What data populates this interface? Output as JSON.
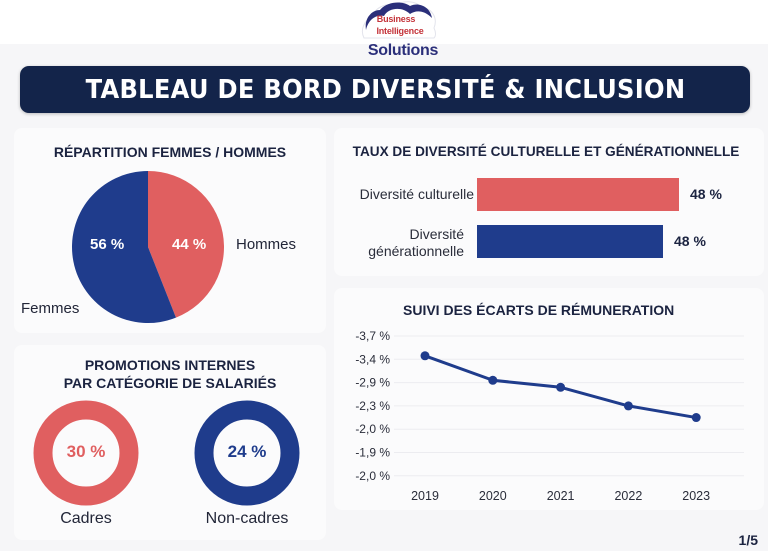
{
  "logo": {
    "line1": "Business",
    "line2": "Intelligence",
    "brand": "Solutions"
  },
  "header": {
    "title": "TABLEAU DE BORD DIVERSITÉ & INCLUSION"
  },
  "colors": {
    "navy": "#13244a",
    "red": "#e05f60",
    "blue": "#1f3c8c",
    "title_text": "#1b2340"
  },
  "page_indicator": "1/5",
  "chart_data": [
    {
      "type": "pie",
      "title": "RÉPARTITION FEMMES / HOMMES",
      "slices": [
        {
          "name": "Hommes",
          "value": 44,
          "label": "44 %",
          "color": "#e05f60"
        },
        {
          "name": "Femmes",
          "value": 56,
          "label": "56 %",
          "color": "#1f3c8c"
        }
      ]
    },
    {
      "type": "bar",
      "orientation": "horizontal",
      "title": "TAUX DE DIVERSITÉ CULTURELLE ET GÉNÉRATIONNELLE",
      "categories": [
        "Diversité culturelle",
        "Diversité générationnelle"
      ],
      "category_lines": [
        [
          "Diversité culturelle"
        ],
        [
          "Diversité",
          "générationnelle"
        ]
      ],
      "values": [
        48,
        48
      ],
      "value_labels": [
        "48 %",
        "48 %"
      ],
      "colors": [
        "#e05f60",
        "#1f3c8c"
      ],
      "bar_fill_fraction": [
        1.0,
        0.92
      ]
    },
    {
      "type": "pie",
      "subtype": "donut",
      "title": "PROMOTIONS INTERNES PAR CATÉGORIE DE SALARIÉS",
      "title_lines": [
        "PROMOTIONS INTERNES",
        "PAR CATÉGORIE DE SALARIÉS"
      ],
      "items": [
        {
          "name": "Cadres",
          "value": 30,
          "label": "30 %",
          "color": "#e05f60"
        },
        {
          "name": "Non-cadres",
          "value": 24,
          "label": "24 %",
          "color": "#1f3c8c"
        }
      ]
    },
    {
      "type": "line",
      "title": "SUIVI DES ÉCARTS DE RÉMUNERATION",
      "x": [
        "2019",
        "2020",
        "2021",
        "2022",
        "2023"
      ],
      "y_tick_labels": [
        "-3,7 %",
        "-3,4 %",
        "-2,9 %",
        "-2,3 %",
        "-2,0 %",
        "-1,9 %",
        "-2,0 %"
      ],
      "y_tick_positions_note": "tick labels listed top to bottom as printed",
      "series": [
        {
          "name": "Écart de rémunération",
          "values": [
            -3.4,
            -3.0,
            -2.8,
            -2.3,
            -2.1
          ],
          "color": "#1f3c8c"
        }
      ],
      "tick_index_of_points": [
        0.85,
        1.9,
        2.2,
        3.0,
        3.5
      ],
      "grid": true,
      "xlabel": "",
      "ylabel": ""
    }
  ]
}
